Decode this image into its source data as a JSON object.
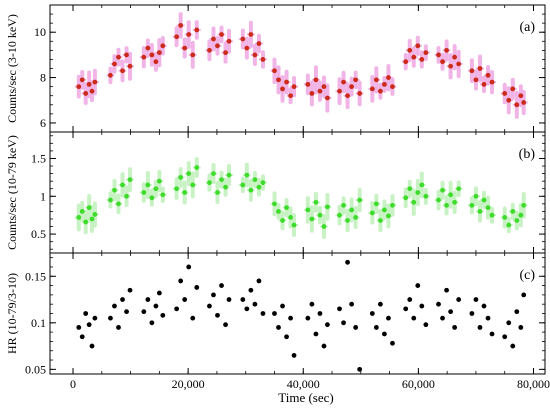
{
  "chart_data": [
    {
      "type": "scatter",
      "panel_label": "(a)",
      "ylabel": "Counts/sec (3-10 keV)",
      "ylim": [
        5.6,
        11.2
      ],
      "yticks": [
        6,
        8,
        10
      ],
      "ytick_labels": [
        "6",
        "8",
        "10"
      ],
      "marker_color": "#cc2a1a",
      "error_color": "#f0b4e6",
      "series": [
        {
          "x": 1000,
          "y": 7.6
        },
        {
          "x": 1600,
          "y": 7.9
        },
        {
          "x": 2200,
          "y": 7.3
        },
        {
          "x": 2800,
          "y": 7.7
        },
        {
          "x": 3300,
          "y": 7.4
        },
        {
          "x": 3800,
          "y": 7.8
        },
        {
          "x": 6500,
          "y": 8.1
        },
        {
          "x": 7200,
          "y": 8.6
        },
        {
          "x": 7900,
          "y": 8.9
        },
        {
          "x": 8600,
          "y": 8.3
        },
        {
          "x": 9300,
          "y": 9.0
        },
        {
          "x": 9900,
          "y": 8.5
        },
        {
          "x": 12300,
          "y": 8.9
        },
        {
          "x": 13000,
          "y": 9.3
        },
        {
          "x": 13700,
          "y": 9.0
        },
        {
          "x": 14400,
          "y": 8.7
        },
        {
          "x": 15000,
          "y": 9.1
        },
        {
          "x": 15600,
          "y": 9.4
        },
        {
          "x": 18000,
          "y": 9.8
        },
        {
          "x": 18700,
          "y": 10.3
        },
        {
          "x": 19400,
          "y": 9.3
        },
        {
          "x": 20100,
          "y": 9.9
        },
        {
          "x": 20800,
          "y": 9.0
        },
        {
          "x": 21500,
          "y": 10.1
        },
        {
          "x": 23700,
          "y": 9.2
        },
        {
          "x": 24400,
          "y": 9.7
        },
        {
          "x": 25100,
          "y": 9.4
        },
        {
          "x": 25800,
          "y": 9.9
        },
        {
          "x": 26500,
          "y": 9.1
        },
        {
          "x": 27100,
          "y": 9.6
        },
        {
          "x": 29500,
          "y": 9.7
        },
        {
          "x": 30200,
          "y": 9.3
        },
        {
          "x": 30900,
          "y": 9.9
        },
        {
          "x": 31600,
          "y": 9.0
        },
        {
          "x": 32300,
          "y": 9.5
        },
        {
          "x": 33000,
          "y": 8.8
        },
        {
          "x": 35000,
          "y": 8.3
        },
        {
          "x": 35700,
          "y": 7.9
        },
        {
          "x": 36400,
          "y": 7.5
        },
        {
          "x": 37100,
          "y": 7.8
        },
        {
          "x": 37800,
          "y": 7.2
        },
        {
          "x": 38400,
          "y": 7.6
        },
        {
          "x": 40800,
          "y": 7.7
        },
        {
          "x": 41500,
          "y": 7.3
        },
        {
          "x": 42200,
          "y": 7.9
        },
        {
          "x": 42900,
          "y": 7.4
        },
        {
          "x": 43600,
          "y": 7.6
        },
        {
          "x": 44200,
          "y": 7.1
        },
        {
          "x": 46300,
          "y": 7.4
        },
        {
          "x": 47000,
          "y": 7.8
        },
        {
          "x": 47700,
          "y": 7.2
        },
        {
          "x": 48400,
          "y": 7.6
        },
        {
          "x": 49100,
          "y": 7.9
        },
        {
          "x": 49800,
          "y": 7.3
        },
        {
          "x": 52000,
          "y": 7.5
        },
        {
          "x": 52700,
          "y": 7.9
        },
        {
          "x": 53400,
          "y": 7.4
        },
        {
          "x": 54100,
          "y": 7.7
        },
        {
          "x": 54800,
          "y": 8.0
        },
        {
          "x": 55500,
          "y": 7.6
        },
        {
          "x": 57800,
          "y": 8.7
        },
        {
          "x": 58500,
          "y": 9.2
        },
        {
          "x": 59200,
          "y": 8.9
        },
        {
          "x": 59900,
          "y": 9.4
        },
        {
          "x": 60600,
          "y": 8.8
        },
        {
          "x": 61300,
          "y": 9.1
        },
        {
          "x": 63500,
          "y": 9.0
        },
        {
          "x": 64200,
          "y": 8.7
        },
        {
          "x": 64900,
          "y": 9.2
        },
        {
          "x": 65600,
          "y": 8.5
        },
        {
          "x": 66300,
          "y": 8.9
        },
        {
          "x": 67000,
          "y": 8.6
        },
        {
          "x": 69300,
          "y": 8.3
        },
        {
          "x": 70000,
          "y": 7.9
        },
        {
          "x": 70700,
          "y": 8.4
        },
        {
          "x": 71400,
          "y": 7.7
        },
        {
          "x": 72100,
          "y": 8.1
        },
        {
          "x": 72800,
          "y": 7.8
        },
        {
          "x": 75000,
          "y": 7.3
        },
        {
          "x": 75700,
          "y": 7.0
        },
        {
          "x": 76400,
          "y": 7.5
        },
        {
          "x": 77100,
          "y": 6.8
        },
        {
          "x": 77800,
          "y": 7.2
        },
        {
          "x": 78300,
          "y": 6.9
        }
      ]
    },
    {
      "type": "scatter",
      "panel_label": "(b)",
      "ylabel": "Counts/sec (10-79 keV)",
      "ylim": [
        0.25,
        1.85
      ],
      "yticks": [
        0.5,
        1,
        1.5
      ],
      "ytick_labels": [
        "0.5",
        "1",
        "1.5"
      ],
      "marker_color": "#3ddc2a",
      "error_color": "#c8f2c4",
      "series": [
        {
          "x": 1000,
          "y": 0.72
        },
        {
          "x": 1600,
          "y": 0.8
        },
        {
          "x": 2200,
          "y": 0.66
        },
        {
          "x": 2800,
          "y": 0.85
        },
        {
          "x": 3300,
          "y": 0.7
        },
        {
          "x": 3800,
          "y": 0.76
        },
        {
          "x": 6500,
          "y": 0.95
        },
        {
          "x": 7200,
          "y": 1.08
        },
        {
          "x": 7900,
          "y": 0.9
        },
        {
          "x": 8600,
          "y": 1.15
        },
        {
          "x": 9300,
          "y": 1.0
        },
        {
          "x": 9900,
          "y": 1.22
        },
        {
          "x": 12300,
          "y": 1.05
        },
        {
          "x": 13000,
          "y": 1.15
        },
        {
          "x": 13700,
          "y": 0.98
        },
        {
          "x": 14400,
          "y": 1.1
        },
        {
          "x": 15000,
          "y": 1.2
        },
        {
          "x": 15600,
          "y": 1.02
        },
        {
          "x": 18000,
          "y": 1.1
        },
        {
          "x": 18700,
          "y": 1.25
        },
        {
          "x": 19400,
          "y": 1.05
        },
        {
          "x": 20100,
          "y": 1.3
        },
        {
          "x": 20800,
          "y": 1.15
        },
        {
          "x": 21500,
          "y": 1.38
        },
        {
          "x": 23700,
          "y": 1.18
        },
        {
          "x": 24400,
          "y": 1.3
        },
        {
          "x": 25100,
          "y": 1.05
        },
        {
          "x": 25800,
          "y": 1.22
        },
        {
          "x": 26500,
          "y": 1.12
        },
        {
          "x": 27100,
          "y": 1.28
        },
        {
          "x": 29500,
          "y": 1.15
        },
        {
          "x": 30200,
          "y": 1.28
        },
        {
          "x": 30900,
          "y": 1.08
        },
        {
          "x": 31600,
          "y": 1.22
        },
        {
          "x": 32300,
          "y": 1.12
        },
        {
          "x": 33000,
          "y": 1.18
        },
        {
          "x": 35000,
          "y": 0.9
        },
        {
          "x": 35700,
          "y": 0.8
        },
        {
          "x": 36400,
          "y": 0.68
        },
        {
          "x": 37100,
          "y": 0.85
        },
        {
          "x": 37800,
          "y": 0.72
        },
        {
          "x": 38400,
          "y": 0.62
        },
        {
          "x": 40800,
          "y": 0.82
        },
        {
          "x": 41500,
          "y": 0.7
        },
        {
          "x": 42200,
          "y": 0.92
        },
        {
          "x": 42900,
          "y": 0.75
        },
        {
          "x": 43600,
          "y": 0.6
        },
        {
          "x": 44200,
          "y": 0.86
        },
        {
          "x": 46300,
          "y": 0.75
        },
        {
          "x": 47000,
          "y": 0.88
        },
        {
          "x": 47700,
          "y": 0.68
        },
        {
          "x": 48400,
          "y": 0.82
        },
        {
          "x": 49100,
          "y": 0.72
        },
        {
          "x": 49800,
          "y": 0.95
        },
        {
          "x": 52000,
          "y": 0.78
        },
        {
          "x": 52700,
          "y": 0.9
        },
        {
          "x": 53400,
          "y": 0.68
        },
        {
          "x": 54100,
          "y": 0.82
        },
        {
          "x": 54800,
          "y": 0.74
        },
        {
          "x": 55500,
          "y": 0.88
        },
        {
          "x": 57800,
          "y": 0.98
        },
        {
          "x": 58500,
          "y": 1.1
        },
        {
          "x": 59200,
          "y": 0.92
        },
        {
          "x": 59900,
          "y": 1.05
        },
        {
          "x": 60600,
          "y": 1.15
        },
        {
          "x": 61300,
          "y": 1.0
        },
        {
          "x": 63500,
          "y": 0.95
        },
        {
          "x": 64200,
          "y": 1.08
        },
        {
          "x": 64900,
          "y": 0.88
        },
        {
          "x": 65600,
          "y": 1.02
        },
        {
          "x": 66300,
          "y": 0.92
        },
        {
          "x": 67000,
          "y": 1.1
        },
        {
          "x": 69300,
          "y": 0.88
        },
        {
          "x": 70000,
          "y": 1.0
        },
        {
          "x": 70700,
          "y": 0.8
        },
        {
          "x": 71400,
          "y": 0.95
        },
        {
          "x": 72100,
          "y": 0.85
        },
        {
          "x": 72800,
          "y": 0.75
        },
        {
          "x": 75000,
          "y": 0.72
        },
        {
          "x": 75700,
          "y": 0.62
        },
        {
          "x": 76400,
          "y": 0.8
        },
        {
          "x": 77100,
          "y": 0.68
        },
        {
          "x": 77800,
          "y": 0.75
        },
        {
          "x": 78300,
          "y": 0.88
        }
      ]
    },
    {
      "type": "scatter",
      "panel_label": "(c)",
      "ylabel": "HR (10-79/3-10)",
      "xlabel": "Time (sec)",
      "ylim": [
        0.045,
        0.175
      ],
      "yticks": [
        0.05,
        0.1,
        0.15
      ],
      "ytick_labels": [
        "0.05",
        "0.1",
        "0.15"
      ],
      "xlim": [
        -4000,
        82000
      ],
      "xticks": [
        0,
        20000,
        40000,
        60000,
        80000
      ],
      "xtick_labels": [
        "0",
        "20,000",
        "40,000",
        "60,000",
        "80,000"
      ],
      "marker_color": "#000000",
      "series": [
        {
          "x": 1000,
          "y": 0.095
        },
        {
          "x": 1600,
          "y": 0.085
        },
        {
          "x": 2200,
          "y": 0.11
        },
        {
          "x": 2800,
          "y": 0.098
        },
        {
          "x": 3300,
          "y": 0.075
        },
        {
          "x": 3800,
          "y": 0.105
        },
        {
          "x": 6500,
          "y": 0.105
        },
        {
          "x": 7200,
          "y": 0.118
        },
        {
          "x": 7900,
          "y": 0.095
        },
        {
          "x": 8600,
          "y": 0.125
        },
        {
          "x": 9300,
          "y": 0.112
        },
        {
          "x": 9900,
          "y": 0.135
        },
        {
          "x": 12300,
          "y": 0.112
        },
        {
          "x": 13000,
          "y": 0.125
        },
        {
          "x": 13700,
          "y": 0.1
        },
        {
          "x": 14400,
          "y": 0.118
        },
        {
          "x": 15000,
          "y": 0.132
        },
        {
          "x": 15600,
          "y": 0.108
        },
        {
          "x": 18000,
          "y": 0.115
        },
        {
          "x": 18700,
          "y": 0.145
        },
        {
          "x": 19400,
          "y": 0.125
        },
        {
          "x": 20100,
          "y": 0.16
        },
        {
          "x": 20800,
          "y": 0.105
        },
        {
          "x": 21500,
          "y": 0.138
        },
        {
          "x": 23700,
          "y": 0.118
        },
        {
          "x": 24400,
          "y": 0.13
        },
        {
          "x": 25100,
          "y": 0.108
        },
        {
          "x": 25800,
          "y": 0.14
        },
        {
          "x": 26500,
          "y": 0.098
        },
        {
          "x": 27100,
          "y": 0.125
        },
        {
          "x": 29500,
          "y": 0.125
        },
        {
          "x": 30200,
          "y": 0.115
        },
        {
          "x": 30900,
          "y": 0.135
        },
        {
          "x": 31600,
          "y": 0.12
        },
        {
          "x": 32300,
          "y": 0.145
        },
        {
          "x": 33000,
          "y": 0.11
        },
        {
          "x": 35000,
          "y": 0.11
        },
        {
          "x": 35700,
          "y": 0.095
        },
        {
          "x": 36400,
          "y": 0.118
        },
        {
          "x": 37100,
          "y": 0.085
        },
        {
          "x": 37800,
          "y": 0.105
        },
        {
          "x": 38400,
          "y": 0.065
        },
        {
          "x": 40800,
          "y": 0.105
        },
        {
          "x": 41500,
          "y": 0.12
        },
        {
          "x": 42200,
          "y": 0.088
        },
        {
          "x": 42900,
          "y": 0.11
        },
        {
          "x": 43600,
          "y": 0.075
        },
        {
          "x": 44200,
          "y": 0.098
        },
        {
          "x": 46300,
          "y": 0.115
        },
        {
          "x": 47000,
          "y": 0.1
        },
        {
          "x": 47700,
          "y": 0.165
        },
        {
          "x": 48400,
          "y": 0.12
        },
        {
          "x": 49100,
          "y": 0.095
        },
        {
          "x": 49800,
          "y": 0.05
        },
        {
          "x": 52000,
          "y": 0.11
        },
        {
          "x": 52700,
          "y": 0.095
        },
        {
          "x": 53400,
          "y": 0.12
        },
        {
          "x": 54100,
          "y": 0.088
        },
        {
          "x": 54800,
          "y": 0.105
        },
        {
          "x": 55500,
          "y": 0.078
        },
        {
          "x": 57800,
          "y": 0.115
        },
        {
          "x": 58500,
          "y": 0.125
        },
        {
          "x": 59200,
          "y": 0.105
        },
        {
          "x": 59900,
          "y": 0.14
        },
        {
          "x": 60600,
          "y": 0.118
        },
        {
          "x": 61300,
          "y": 0.098
        },
        {
          "x": 63500,
          "y": 0.12
        },
        {
          "x": 64200,
          "y": 0.105
        },
        {
          "x": 64900,
          "y": 0.135
        },
        {
          "x": 65600,
          "y": 0.112
        },
        {
          "x": 66300,
          "y": 0.095
        },
        {
          "x": 67000,
          "y": 0.125
        },
        {
          "x": 69300,
          "y": 0.11
        },
        {
          "x": 70000,
          "y": 0.125
        },
        {
          "x": 70700,
          "y": 0.095
        },
        {
          "x": 71400,
          "y": 0.118
        },
        {
          "x": 72100,
          "y": 0.105
        },
        {
          "x": 72800,
          "y": 0.088
        },
        {
          "x": 75000,
          "y": 0.085
        },
        {
          "x": 75700,
          "y": 0.1
        },
        {
          "x": 76400,
          "y": 0.075
        },
        {
          "x": 77100,
          "y": 0.112
        },
        {
          "x": 77800,
          "y": 0.095
        },
        {
          "x": 78300,
          "y": 0.13
        }
      ]
    }
  ]
}
